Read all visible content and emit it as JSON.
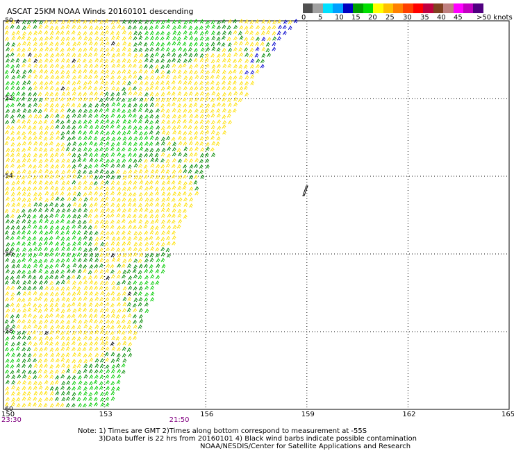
{
  "title": "ASCAT 25KM NOAA Winds 20160101 descending",
  "colorbar": {
    "colors": [
      "#505050",
      "#a0a0a0",
      "#00e0ff",
      "#00a0ff",
      "#0000c0",
      "#00a000",
      "#00e000",
      "#ffff00",
      "#ffc000",
      "#ff8000",
      "#ff4000",
      "#ff0000",
      "#c00040",
      "#804020",
      "#c08080",
      "#ff00ff",
      "#c000c0",
      "#500080"
    ],
    "labels": [
      "0",
      "5",
      "10",
      "15",
      "20",
      "25",
      "30",
      "35",
      "40",
      "45",
      ">50 knots"
    ]
  },
  "map": {
    "lon_labels": [
      "150",
      "153",
      "156",
      "159",
      "162",
      "165"
    ],
    "lat_labels": [
      "-50",
      "-52",
      "-54",
      "-56",
      "-58",
      "-60"
    ],
    "lon_range": [
      150,
      165
    ],
    "lat_range": [
      -60,
      -50
    ],
    "time_labels": [
      {
        "lon": 150,
        "text": "23:30"
      },
      {
        "lon": 155,
        "text": "21:50"
      }
    ],
    "grid": "dotted",
    "barb_colors": {
      "yellow": "#ffe000",
      "green": "#008800",
      "light_green": "#00cc00",
      "blue": "#0000cc",
      "black": "#000000"
    }
  },
  "notes": {
    "line1": "Note: 1) Times are GMT 2)Times along bottom correspond to measurement at -55S",
    "line2": "3)Data buffer is 22 hrs from 20160101 4) Black wind barbs indicate possible contamination",
    "line3": "NOAA/NESDIS/Center for Satellite Applications and Research"
  }
}
